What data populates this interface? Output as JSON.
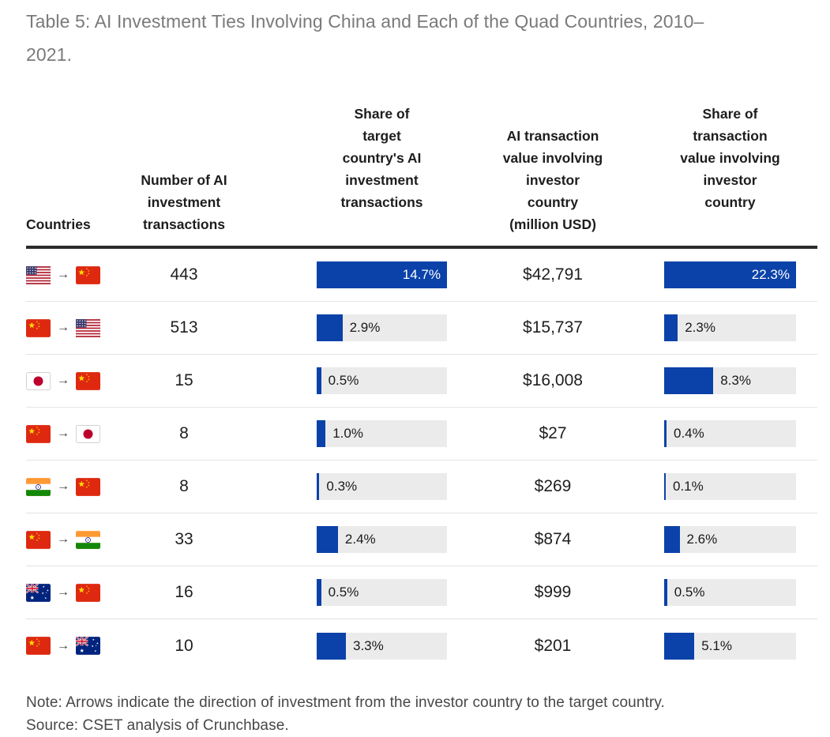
{
  "chart_data": {
    "type": "table",
    "title": "Table 5: AI Investment Ties Involving China and Each of the Quad Countries, 2010–\n2021.",
    "columns": [
      "Countries",
      "Number of AI\ninvestment\ntransactions",
      "Share of\ntarget\ncountry's AI\ninvestment\ntransactions",
      "AI transaction\nvalue involving\ninvestor\ncountry\n(million USD)",
      "Share of\ntransaction\nvalue involving\ninvestor\ncountry"
    ],
    "bar_max": {
      "share_target": 14.7,
      "share_value": 22.3
    },
    "rows": [
      {
        "pair": "United States to China",
        "investor_flag": "us",
        "target_flag": "cn",
        "transactions": "443",
        "share_target": {
          "pct": 14.7,
          "label": "14.7%"
        },
        "value": {
          "label": "$42,791",
          "musd": 42791
        },
        "share_value": {
          "pct": 22.3,
          "label": "22.3%"
        }
      },
      {
        "pair": "China to United States",
        "investor_flag": "cn",
        "target_flag": "us",
        "transactions": "513",
        "share_target": {
          "pct": 2.9,
          "label": "2.9%"
        },
        "value": {
          "label": "$15,737",
          "musd": 15737
        },
        "share_value": {
          "pct": 2.3,
          "label": "2.3%"
        }
      },
      {
        "pair": "Japan to China",
        "investor_flag": "jp",
        "target_flag": "cn",
        "transactions": "15",
        "share_target": {
          "pct": 0.5,
          "label": "0.5%"
        },
        "value": {
          "label": "$16,008",
          "musd": 16008
        },
        "share_value": {
          "pct": 8.3,
          "label": "8.3%"
        }
      },
      {
        "pair": "China to Japan",
        "investor_flag": "cn",
        "target_flag": "jp",
        "transactions": "8",
        "share_target": {
          "pct": 1.0,
          "label": "1.0%"
        },
        "value": {
          "label": "$27",
          "musd": 27
        },
        "share_value": {
          "pct": 0.4,
          "label": "0.4%"
        }
      },
      {
        "pair": "India to China",
        "investor_flag": "in",
        "target_flag": "cn",
        "transactions": "8",
        "share_target": {
          "pct": 0.3,
          "label": "0.3%"
        },
        "value": {
          "label": "$269",
          "musd": 269
        },
        "share_value": {
          "pct": 0.1,
          "label": "0.1%"
        }
      },
      {
        "pair": "China to India",
        "investor_flag": "cn",
        "target_flag": "in",
        "transactions": "33",
        "share_target": {
          "pct": 2.4,
          "label": "2.4%"
        },
        "value": {
          "label": "$874",
          "musd": 874
        },
        "share_value": {
          "pct": 2.6,
          "label": "2.6%"
        }
      },
      {
        "pair": "Australia to China",
        "investor_flag": "au",
        "target_flag": "cn",
        "transactions": "16",
        "share_target": {
          "pct": 0.5,
          "label": "0.5%"
        },
        "value": {
          "label": "$999",
          "musd": 999
        },
        "share_value": {
          "pct": 0.5,
          "label": "0.5%"
        }
      },
      {
        "pair": "China to Australia",
        "investor_flag": "cn",
        "target_flag": "au",
        "transactions": "10",
        "share_target": {
          "pct": 3.3,
          "label": "3.3%"
        },
        "value": {
          "label": "$201",
          "musd": 201
        },
        "share_value": {
          "pct": 5.1,
          "label": "5.1%"
        }
      }
    ]
  },
  "icons": {
    "arrow": "→"
  },
  "note": "Note: Arrows indicate the direction of investment from the investor country to the target country.",
  "source": "Source: CSET analysis of Crunchbase.",
  "colors": {
    "bar_fill": "#0B42A9",
    "bar_track": "#EBEBEB",
    "header_rule": "#2B2B2B",
    "row_divider": "#E3E3E3",
    "title": "#7A7A7A",
    "note": "#474747",
    "body_text": "#1F1F1F",
    "bar_label_on_fill": "#FFFFFF"
  }
}
